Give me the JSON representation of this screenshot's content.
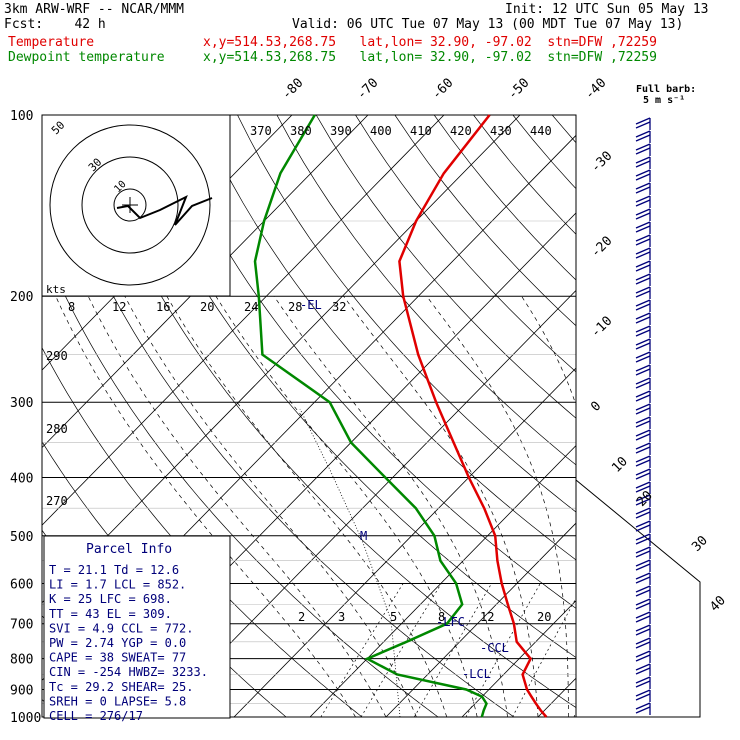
{
  "header": {
    "model": "3km ARW-WRF -- NCAR/MMM",
    "init": "Init: 12 UTC Sun 05 May 13",
    "fcst": "Fcst:    42 h",
    "valid": "Valid: 06 UTC Tue 07 May 13 (00 MDT Tue 07 May 13)",
    "temp_label": "Temperature",
    "temp_loc": "x,y=514.53,268.75   lat,lon= 32.90, -97.02  stn=DFW ,72259",
    "dew_label": "Dewpoint temperature",
    "dew_loc": "x,y=514.53,268.75   lat,lon= 32.90, -97.02  stn=DFW ,72259"
  },
  "colors": {
    "temperature": "#e00000",
    "dewpoint": "#008800",
    "annot": "#00007a",
    "axes": "#000000"
  },
  "full_barb": {
    "line1": "Full barb:",
    "line2": "5 m s⁻¹"
  },
  "pressure_labels": [
    "100",
    "200",
    "300",
    "400",
    "500",
    "600",
    "700",
    "800",
    "900",
    "1000"
  ],
  "temp_iso_labels": [
    "-80",
    "-70",
    "-60",
    "-50",
    "-40",
    "-30",
    "-20",
    "-10",
    "0",
    "10",
    "20",
    "30",
    "40"
  ],
  "theta_labels": [
    "370",
    "380",
    "390",
    "400",
    "410",
    "420",
    "430",
    "440"
  ],
  "theta_left_labels": [
    "290",
    "280",
    "270"
  ],
  "mixing_labels": [
    "2",
    "3",
    "5",
    "8",
    "12",
    "20"
  ],
  "wind_labels": [
    "8",
    "12",
    "16",
    "20",
    "24",
    "28",
    "32"
  ],
  "hodo_labels": {
    "kts": "kts",
    "r50": "50",
    "r30": "30",
    "r10": "10"
  },
  "levels": {
    "el": "-EL",
    "lfc": "-LFC",
    "ccl": "-CCL",
    "lcl": "-LCL"
  },
  "parcel": {
    "title": "Parcel Info",
    "rows": [
      "T   =   21.1  Td =  12.6",
      "LI  =    1.7  LCL =  852.",
      "K   =     25  LFC =  698.",
      "TT  =     43  EL  =  309.",
      "SVI =    4.9  CCL =  772.",
      "PW  =   2.74  YGP =   0.0",
      "CAPE =    38  SWEAT=   77",
      "CIN  =  -254  HWBZ= 3233.",
      "Tc  =   29.2  SHEAR=  25.",
      "SREH =     0  LAPSE=  5.8",
      "CELL = 276/17"
    ]
  },
  "chart_data": {
    "type": "line",
    "title": "",
    "y_axis": "pressure (hPa), log scale",
    "ylim": [
      1000,
      100
    ],
    "series": [
      {
        "name": "Temperature",
        "pressure": [
          1000,
          975,
          950,
          925,
          900,
          850,
          800,
          750,
          700,
          650,
          600,
          550,
          500,
          450,
          400,
          350,
          300,
          250,
          200,
          175,
          150,
          125,
          100
        ],
        "temp_c": [
          21.1,
          19.5,
          18.0,
          16.5,
          15.0,
          12.5,
          11.5,
          7.5,
          4.8,
          1.5,
          -2.0,
          -5.5,
          -9.0,
          -14.0,
          -20.0,
          -26.5,
          -34.0,
          -42.5,
          -52.0,
          -57.0,
          -60.0,
          -62.5,
          -64.0
        ]
      },
      {
        "name": "Dewpoint temperature",
        "pressure": [
          1000,
          975,
          950,
          925,
          900,
          850,
          800,
          750,
          700,
          650,
          600,
          550,
          500,
          450,
          400,
          350,
          300,
          250,
          200,
          175,
          150,
          125,
          100
        ],
        "temp_c": [
          12.6,
          12.0,
          11.5,
          10.0,
          7.0,
          -4.0,
          -10.0,
          -7.0,
          -4.0,
          -4.5,
          -8.0,
          -13.0,
          -17.0,
          -23.0,
          -31.0,
          -40.0,
          -48.0,
          -63.0,
          -71.0,
          -76.0,
          -80.0,
          -84.0,
          -87.0
        ]
      }
    ]
  }
}
